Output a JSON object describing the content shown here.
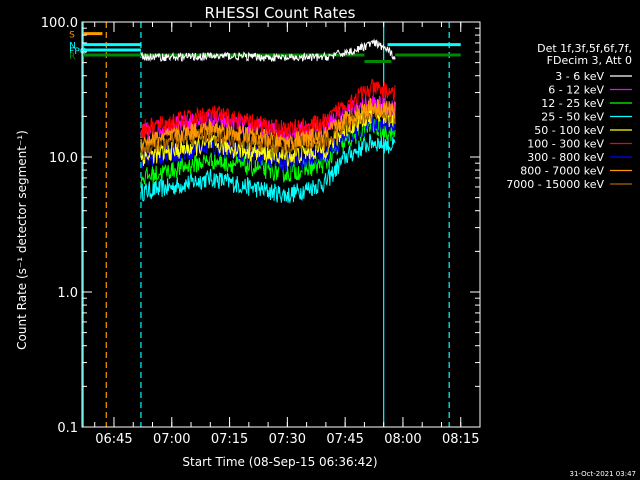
{
  "footer_stamp": "31-Oct-2021 03:47",
  "chart_data": {
    "type": "line",
    "title": "RHESSI Count Rates",
    "xlabel": "Start Time (08-Sep-15 06:36:42)",
    "ylabel": "Count Rate (s⁻¹ detector segment⁻¹)",
    "yscale": "log",
    "ylim": [
      0.1,
      100
    ],
    "y_ticks": [
      {
        "value": 0.1,
        "label": "0.1"
      },
      {
        "value": 1,
        "label": "1.0"
      },
      {
        "value": 10,
        "label": "10.0"
      },
      {
        "value": 100,
        "label": "100.0"
      }
    ],
    "xlim": [
      "06:36:42",
      "08:20:00"
    ],
    "x_ticks": [
      {
        "time": "06:45",
        "label": "06:45"
      },
      {
        "time": "07:00",
        "label": "07:00"
      },
      {
        "time": "07:15",
        "label": "07:15"
      },
      {
        "time": "07:30",
        "label": "07:30"
      },
      {
        "time": "07:45",
        "label": "07:45"
      },
      {
        "time": "08:00",
        "label": "08:00"
      },
      {
        "time": "08:15",
        "label": "08:15"
      }
    ],
    "legend_header": [
      "Det 1f,3f,5f,6f,7f,",
      "FDecim 3, Att 0"
    ],
    "legend_position": "right",
    "series": [
      {
        "name": "3 - 6 keV",
        "color": "#ffffff",
        "points": [
          [
            "06:52",
            55
          ],
          [
            "07:00",
            55
          ],
          [
            "07:15",
            56
          ],
          [
            "07:30",
            54
          ],
          [
            "07:40",
            55
          ],
          [
            "07:48",
            62
          ],
          [
            "07:52",
            70
          ],
          [
            "07:55",
            65
          ],
          [
            "07:58",
            55
          ]
        ]
      },
      {
        "name": "6 - 12 keV",
        "color": "#ff00ff",
        "points": [
          [
            "06:52",
            15
          ],
          [
            "07:00",
            17
          ],
          [
            "07:10",
            19
          ],
          [
            "07:20",
            17
          ],
          [
            "07:30",
            15
          ],
          [
            "07:40",
            17
          ],
          [
            "07:45",
            22
          ],
          [
            "07:52",
            25
          ],
          [
            "07:58",
            23
          ]
        ]
      },
      {
        "name": "12 - 25 keV",
        "color": "#00ff00",
        "points": [
          [
            "06:52",
            7
          ],
          [
            "07:00",
            8
          ],
          [
            "07:10",
            9.5
          ],
          [
            "07:20",
            8.5
          ],
          [
            "07:30",
            7.5
          ],
          [
            "07:40",
            9
          ],
          [
            "07:45",
            13
          ],
          [
            "07:52",
            17
          ],
          [
            "07:58",
            15
          ]
        ]
      },
      {
        "name": "25 - 50 keV",
        "color": "#00ffff",
        "points": [
          [
            "06:52",
            5.5
          ],
          [
            "07:00",
            6
          ],
          [
            "07:10",
            7
          ],
          [
            "07:20",
            6
          ],
          [
            "07:30",
            5.2
          ],
          [
            "07:40",
            6.5
          ],
          [
            "07:45",
            10
          ],
          [
            "07:52",
            13
          ],
          [
            "07:58",
            12
          ]
        ]
      },
      {
        "name": "50 - 100 keV",
        "color": "#ffff00",
        "points": [
          [
            "06:52",
            10
          ],
          [
            "07:00",
            11
          ],
          [
            "07:10",
            12.5
          ],
          [
            "07:20",
            11
          ],
          [
            "07:30",
            10
          ],
          [
            "07:40",
            11.5
          ],
          [
            "07:45",
            16
          ],
          [
            "07:52",
            21
          ],
          [
            "07:58",
            19
          ]
        ]
      },
      {
        "name": "100 - 300 keV",
        "color": "#ff0000",
        "points": [
          [
            "06:52",
            16
          ],
          [
            "07:00",
            18
          ],
          [
            "07:10",
            21
          ],
          [
            "07:20",
            18
          ],
          [
            "07:30",
            16
          ],
          [
            "07:40",
            18
          ],
          [
            "07:45",
            25
          ],
          [
            "07:52",
            32
          ],
          [
            "07:58",
            30
          ]
        ]
      },
      {
        "name": "300 - 800 keV",
        "color": "#0000ff",
        "points": [
          [
            "06:52",
            9.5
          ],
          [
            "07:00",
            10.5
          ],
          [
            "07:10",
            12
          ],
          [
            "07:20",
            10.5
          ],
          [
            "07:30",
            9
          ],
          [
            "07:40",
            10.5
          ],
          [
            "07:45",
            14
          ],
          [
            "07:52",
            18
          ],
          [
            "07:58",
            17
          ]
        ]
      },
      {
        "name": "800 - 7000 keV",
        "color": "#ff9900",
        "points": [
          [
            "06:52",
            13
          ],
          [
            "07:00",
            14.5
          ],
          [
            "07:10",
            16.5
          ],
          [
            "07:20",
            14.5
          ],
          [
            "07:30",
            13
          ],
          [
            "07:40",
            14.5
          ],
          [
            "07:45",
            19
          ],
          [
            "07:52",
            24
          ],
          [
            "07:58",
            22
          ]
        ]
      },
      {
        "name": "7000 - 15000 keV",
        "color": "#aa6600",
        "points": [
          [
            "06:52",
            12
          ],
          [
            "07:00",
            13
          ],
          [
            "07:10",
            15
          ],
          [
            "07:20",
            13
          ],
          [
            "07:30",
            12
          ],
          [
            "07:40",
            13
          ],
          [
            "07:45",
            17
          ],
          [
            "07:52",
            22
          ],
          [
            "07:58",
            20
          ]
        ]
      }
    ],
    "vertical_markers": [
      {
        "time": "06:37",
        "color": "#00ffff",
        "style": "solid"
      },
      {
        "time": "06:43",
        "color": "#ff9900",
        "style": "dashed"
      },
      {
        "time": "06:52",
        "color": "#00ffff",
        "style": "dashed"
      },
      {
        "time": "07:55",
        "color": "#00ffff",
        "style": "solid"
      },
      {
        "time": "08:12",
        "color": "#00ffff",
        "style": "dashed"
      }
    ],
    "flag_bars": [
      {
        "label": "S",
        "color": "#ff9900",
        "segments": [
          [
            "06:37",
            "06:42"
          ]
        ],
        "y": 82
      },
      {
        "label": "N",
        "color": "#00ffff",
        "segments": [
          [
            "06:37",
            "06:52"
          ],
          [
            "07:56",
            "08:15"
          ]
        ],
        "y": 68
      },
      {
        "label": "FPO",
        "color": "#00ffff",
        "segments": [
          [
            "06:37",
            "06:52"
          ]
        ],
        "y": 62
      },
      {
        "label": "R",
        "color": "#008800",
        "segments": [
          [
            "06:37",
            "07:50"
          ],
          [
            "07:58",
            "08:15"
          ]
        ],
        "y": 57
      },
      {
        "label": "",
        "color": "#008800",
        "segments": [
          [
            "07:50",
            "07:57"
          ]
        ],
        "y": 51
      }
    ]
  }
}
